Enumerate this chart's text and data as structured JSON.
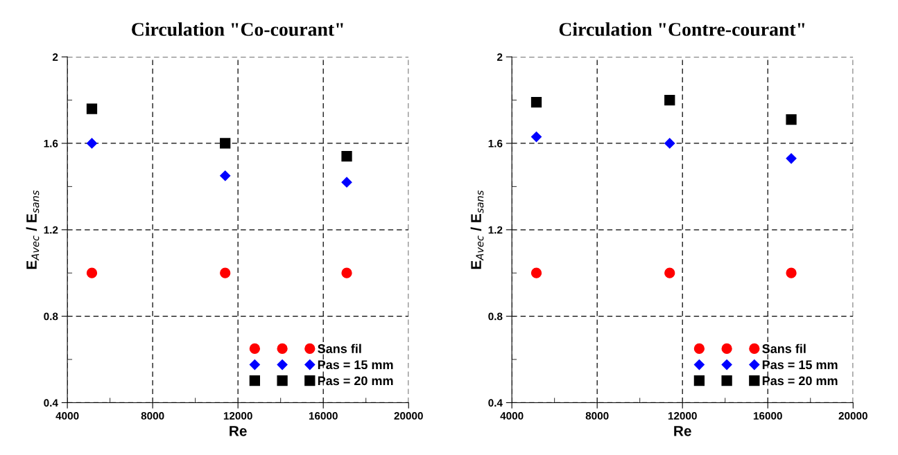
{
  "chart_data": [
    {
      "type": "scatter",
      "title": "Circulation \"Co-courant\"",
      "xlabel": "Re",
      "ylabel": "E$_{Avec}$ / E$_{sans}$",
      "x": [
        5150,
        11400,
        17100
      ],
      "series": [
        {
          "name": "Sans fil",
          "color": "#ff0000",
          "marker": "circle",
          "values": [
            1.0,
            1.0,
            1.0
          ]
        },
        {
          "name": "Pas = 15 mm",
          "color": "#0000ff",
          "marker": "diamond",
          "values": [
            1.6,
            1.45,
            1.42
          ]
        },
        {
          "name": "Pas = 20 mm",
          "color": "#000000",
          "marker": "square",
          "values": [
            1.76,
            1.6,
            1.54
          ]
        }
      ],
      "xlim": [
        4000,
        20000
      ],
      "xticks": [
        4000,
        8000,
        12000,
        16000,
        20000
      ],
      "ylim": [
        0.4,
        2
      ],
      "yticks": [
        0.4,
        0.8,
        1.2,
        1.6,
        2
      ],
      "grid": true,
      "legend": "bottom right"
    },
    {
      "type": "scatter",
      "title": "Circulation \"Contre-courant\"",
      "xlabel": "Re",
      "ylabel": "E$_{Avec}$ / E$_{sans}$",
      "x": [
        5150,
        11400,
        17100
      ],
      "series": [
        {
          "name": "Sans fil",
          "color": "#ff0000",
          "marker": "circle",
          "values": [
            1.0,
            1.0,
            1.0
          ]
        },
        {
          "name": "Pas = 15 mm",
          "color": "#0000ff",
          "marker": "diamond",
          "values": [
            1.63,
            1.6,
            1.53
          ]
        },
        {
          "name": "Pas = 20 mm",
          "color": "#000000",
          "marker": "square",
          "values": [
            1.79,
            1.8,
            1.71
          ]
        }
      ],
      "xlim": [
        4000,
        20000
      ],
      "xticks": [
        4000,
        8000,
        12000,
        16000,
        20000
      ],
      "ylim": [
        0.4,
        2
      ],
      "yticks": [
        0.4,
        0.8,
        1.2,
        1.6,
        2
      ],
      "grid": true,
      "legend": "bottom right"
    }
  ]
}
